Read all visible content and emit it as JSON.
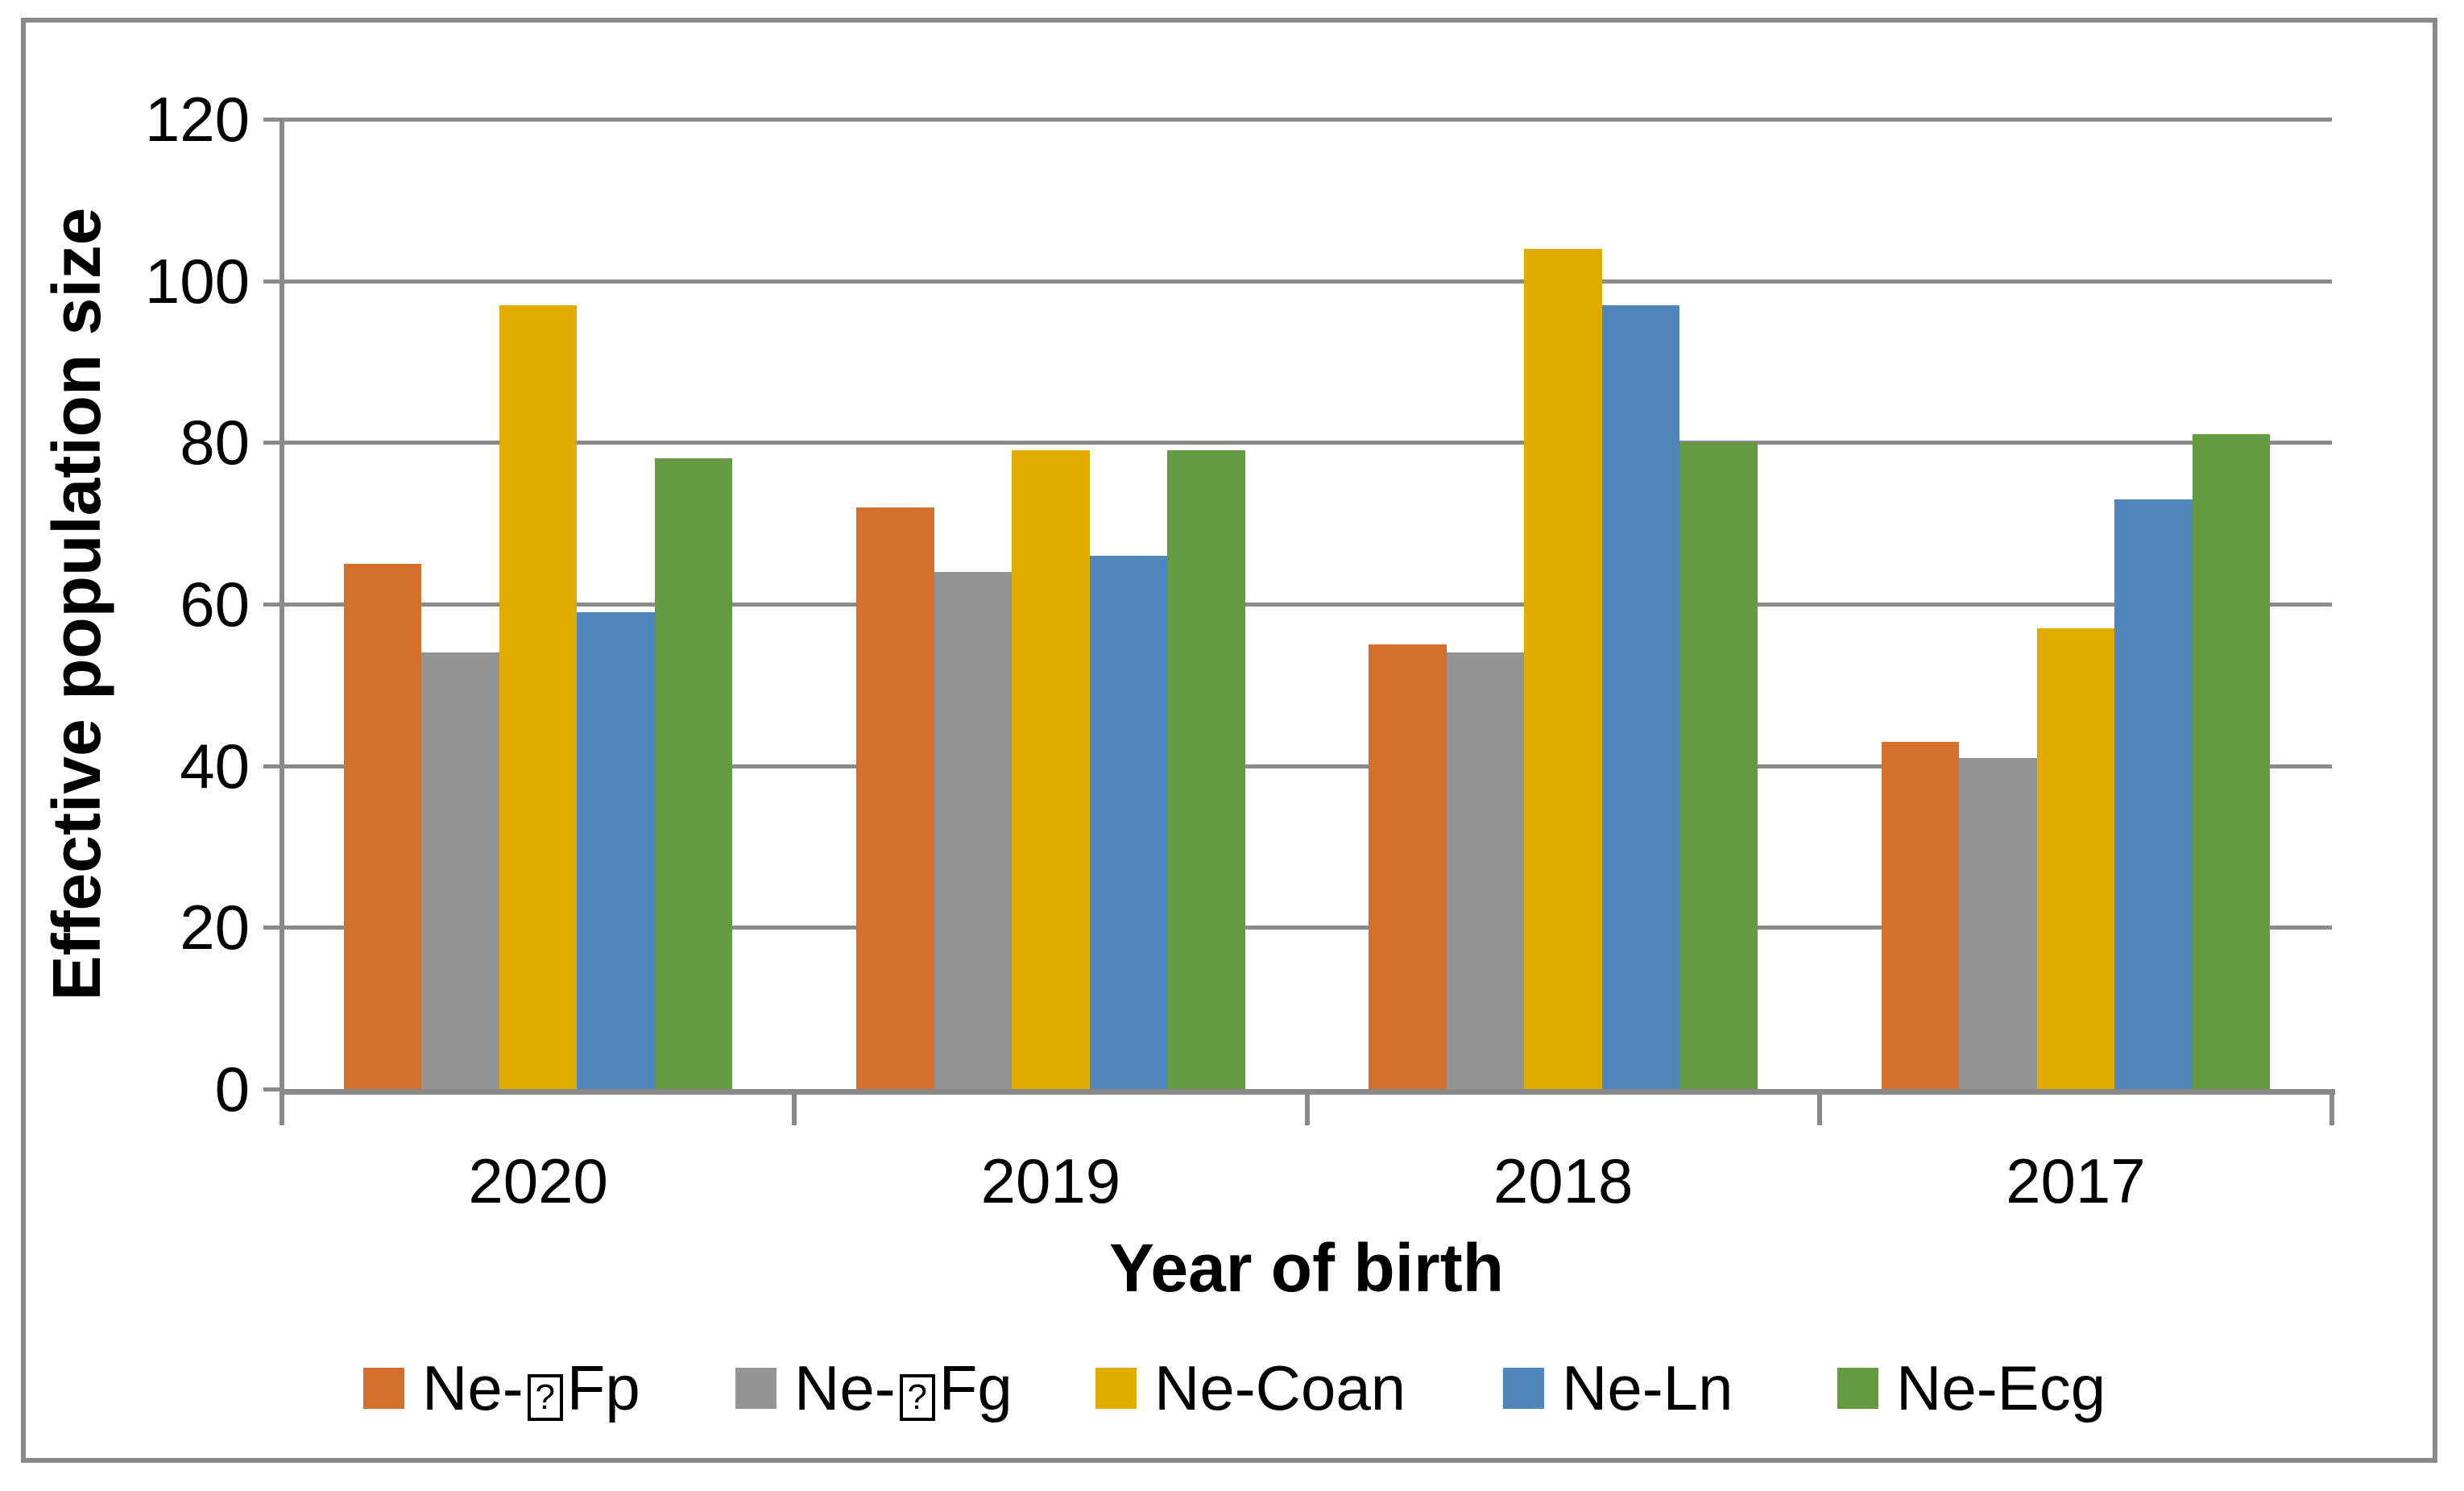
{
  "chart_data": {
    "type": "bar",
    "title": "",
    "xlabel": "Year of birth",
    "ylabel": "Effective population size",
    "categories": [
      "2020",
      "2019",
      "2018",
      "2017"
    ],
    "series": [
      {
        "name_parts": [
          {
            "text": "Ne-"
          },
          {
            "boxed": "?"
          },
          {
            "text": "Fp"
          }
        ],
        "color": "#d5702c",
        "values": [
          65,
          72,
          55,
          43
        ]
      },
      {
        "name_parts": [
          {
            "text": "Ne-"
          },
          {
            "boxed": "?"
          },
          {
            "text": "Fg"
          }
        ],
        "color": "#949494",
        "values": [
          54,
          64,
          54,
          41
        ]
      },
      {
        "name_parts": [
          {
            "text": "Ne-Coan"
          }
        ],
        "color": "#e2ab00",
        "values": [
          97,
          79,
          104,
          57
        ]
      },
      {
        "name_parts": [
          {
            "text": "Ne-Ln"
          }
        ],
        "color": "#4f87bd",
        "values": [
          59,
          66,
          97,
          73
        ]
      },
      {
        "name_parts": [
          {
            "text": "Ne-Ecg"
          }
        ],
        "color": "#649b40",
        "values": [
          78,
          79,
          80,
          81
        ]
      }
    ],
    "ylim": [
      0,
      120
    ],
    "ytick_step": 20,
    "yticks": [
      0,
      20,
      40,
      60,
      80,
      100,
      120
    ],
    "grid": true,
    "legend_position": "bottom",
    "colors": {
      "axis": "#8a8a8a",
      "gridline": "#8a8a8a",
      "outer_border": "#8a8a8a",
      "text": "#000000",
      "background": "#ffffff"
    }
  }
}
